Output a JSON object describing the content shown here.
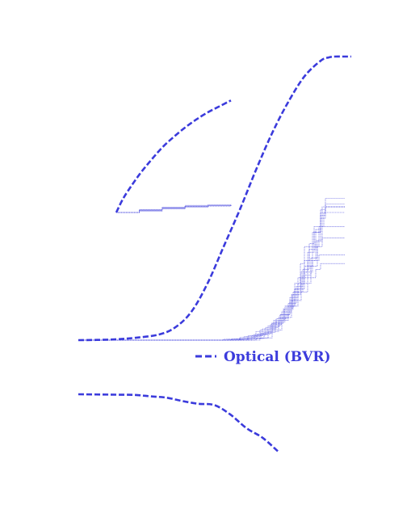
{
  "chart_data": [
    {
      "type": "line",
      "panel": "main-cdf",
      "series": [
        {
          "name": "Optical (BVR)",
          "style": "dashed",
          "x": [
            0,
            40,
            70,
            100,
            120,
            140,
            160,
            180,
            200,
            220,
            240,
            260,
            280,
            300,
            310,
            318,
            328,
            338
          ],
          "y": [
            0.0,
            0.002,
            0.008,
            0.02,
            0.045,
            0.1,
            0.2,
            0.33,
            0.46,
            0.6,
            0.73,
            0.84,
            0.93,
            0.985,
            0.997,
            1.0,
            1.0,
            1.0
          ]
        },
        {
          "name": "",
          "style": "thin-step",
          "x": [
            0,
            100,
            180,
            200,
            220,
            240,
            250,
            262,
            268,
            275,
            280,
            290,
            300,
            306,
            330
          ],
          "y": [
            0.0,
            0.0,
            0.003,
            0.01,
            0.03,
            0.06,
            0.09,
            0.14,
            0.2,
            0.27,
            0.33,
            0.38,
            0.43,
            0.47,
            0.47
          ]
        },
        {
          "name": "",
          "style": "thin-step",
          "x": [
            0,
            100,
            185,
            205,
            225,
            242,
            255,
            265,
            272,
            280,
            286,
            292,
            300,
            306,
            330
          ],
          "y": [
            0.0,
            0.0,
            0.003,
            0.012,
            0.035,
            0.07,
            0.11,
            0.16,
            0.22,
            0.28,
            0.34,
            0.4,
            0.46,
            0.5,
            0.5
          ]
        },
        {
          "name": "",
          "style": "thin-step",
          "x": [
            0,
            100,
            190,
            210,
            228,
            245,
            258,
            268,
            276,
            284,
            292,
            300,
            306,
            330
          ],
          "y": [
            0.0,
            0.0,
            0.004,
            0.015,
            0.04,
            0.075,
            0.12,
            0.18,
            0.24,
            0.31,
            0.38,
            0.44,
            0.47,
            0.47
          ]
        },
        {
          "name": "",
          "style": "thin-step",
          "x": [
            0,
            100,
            195,
            215,
            232,
            248,
            260,
            270,
            278,
            286,
            294,
            300,
            306,
            330
          ],
          "y": [
            0.0,
            0.0,
            0.004,
            0.017,
            0.045,
            0.08,
            0.13,
            0.19,
            0.25,
            0.32,
            0.39,
            0.45,
            0.48,
            0.48
          ]
        },
        {
          "name": "",
          "style": "thin-step",
          "x": [
            0,
            100,
            200,
            218,
            235,
            250,
            262,
            272,
            280,
            290,
            298,
            304,
            330
          ],
          "y": [
            0.0,
            0.0,
            0.005,
            0.02,
            0.05,
            0.09,
            0.15,
            0.2,
            0.26,
            0.33,
            0.4,
            0.45,
            0.45
          ]
        },
        {
          "name": "",
          "style": "thin-step",
          "x": [
            0,
            100,
            205,
            222,
            238,
            252,
            264,
            275,
            284,
            294,
            300,
            330
          ],
          "y": [
            0.0,
            0.0,
            0.005,
            0.022,
            0.055,
            0.1,
            0.16,
            0.22,
            0.28,
            0.35,
            0.4,
            0.4
          ]
        },
        {
          "name": "",
          "style": "thin-step",
          "x": [
            0,
            100,
            210,
            226,
            240,
            254,
            266,
            278,
            288,
            296,
            302,
            330
          ],
          "y": [
            0.0,
            0.0,
            0.006,
            0.025,
            0.06,
            0.11,
            0.17,
            0.23,
            0.29,
            0.33,
            0.36,
            0.36
          ]
        },
        {
          "name": "",
          "style": "thin-step",
          "x": [
            0,
            100,
            215,
            230,
            244,
            256,
            268,
            280,
            290,
            298,
            330
          ],
          "y": [
            0.0,
            0.0,
            0.006,
            0.027,
            0.065,
            0.12,
            0.18,
            0.24,
            0.28,
            0.3,
            0.3
          ]
        },
        {
          "name": "",
          "style": "thin-step",
          "x": [
            0,
            100,
            220,
            235,
            248,
            260,
            272,
            284,
            294,
            300,
            330
          ],
          "y": [
            0.0,
            0.0,
            0.007,
            0.03,
            0.07,
            0.12,
            0.17,
            0.22,
            0.25,
            0.27,
            0.27
          ]
        },
        {
          "name": "",
          "style": "thin-step",
          "x": [
            0,
            100,
            225,
            240,
            252,
            264,
            276,
            288,
            296,
            302,
            330
          ],
          "y": [
            0.0,
            0.0,
            0.008,
            0.035,
            0.08,
            0.14,
            0.2,
            0.26,
            0.35,
            0.47,
            0.47
          ]
        }
      ],
      "legend": {
        "position": "bottom-right"
      }
    },
    {
      "type": "line",
      "panel": "inset",
      "series": [
        {
          "name": "",
          "style": "dashed",
          "x": [
            0,
            0.05,
            0.1,
            0.2,
            0.3,
            0.4,
            0.5,
            0.6,
            0.7,
            0.8,
            0.9,
            1.0
          ],
          "y": [
            0.0,
            0.1,
            0.18,
            0.32,
            0.44,
            0.55,
            0.64,
            0.72,
            0.79,
            0.85,
            0.9,
            0.95
          ]
        },
        {
          "name": "",
          "style": "thin-step",
          "x": [
            0,
            0.2,
            0.4,
            0.6,
            0.8,
            1.0
          ],
          "y": [
            0.0,
            0.02,
            0.04,
            0.055,
            0.06,
            0.065
          ]
        },
        {
          "name": "",
          "style": "thin-step",
          "x": [
            0,
            0.2,
            0.4,
            0.6,
            0.8,
            1.0
          ],
          "y": [
            0.0,
            0.015,
            0.035,
            0.05,
            0.055,
            0.06
          ]
        },
        {
          "name": "",
          "style": "thin-step",
          "x": [
            0,
            0.2,
            0.4,
            0.6,
            0.8,
            1.0
          ],
          "y": [
            0.0,
            0.025,
            0.045,
            0.06,
            0.065,
            0.07
          ]
        },
        {
          "name": "",
          "style": "thin-step",
          "x": [
            0,
            0.2,
            0.4,
            0.6,
            0.8,
            1.0
          ],
          "y": [
            0.0,
            0.01,
            0.03,
            0.045,
            0.055,
            0.058
          ]
        },
        {
          "name": "",
          "style": "thin-step",
          "x": [
            0,
            0.2,
            0.4,
            0.6,
            0.8,
            1.0
          ],
          "y": [
            0.0,
            0.02,
            0.04,
            0.05,
            0.06,
            0.062
          ]
        }
      ]
    },
    {
      "type": "line",
      "panel": "lower",
      "series": [
        {
          "name": "",
          "style": "dashed",
          "x": [
            0,
            40,
            70,
            90,
            110,
            130,
            150,
            170,
            190,
            210,
            230,
            250
          ],
          "y": [
            1.0,
            0.995,
            0.99,
            0.97,
            0.95,
            0.9,
            0.86,
            0.84,
            0.7,
            0.5,
            0.36,
            0.15
          ]
        }
      ]
    }
  ],
  "styles": {
    "series_color": "#3b3bdc"
  }
}
